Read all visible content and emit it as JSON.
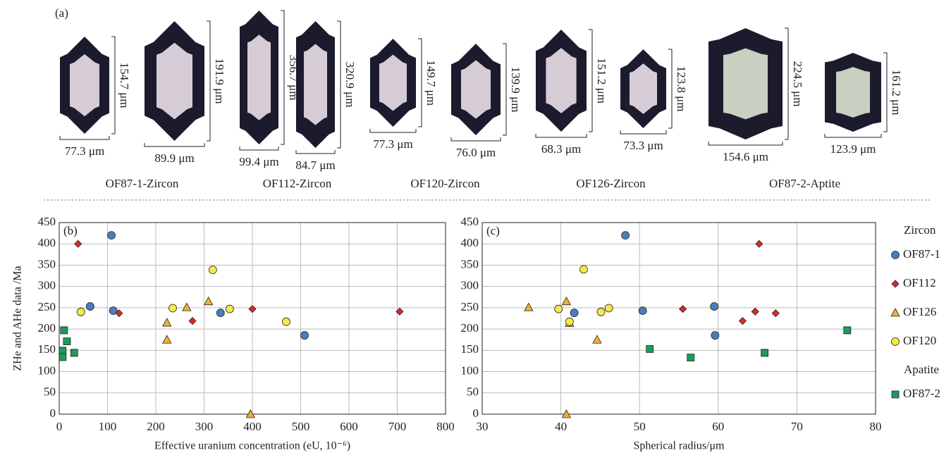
{
  "panel_a": {
    "label": "(a)",
    "samples": [
      {
        "name": "OF87-1-Zircon",
        "grains": [
          {
            "height": "154.7 μm",
            "width": "77.3 μm"
          },
          {
            "height": "191.9 μm",
            "width": "89.9 μm"
          }
        ]
      },
      {
        "name": "OF112-Zircon",
        "grains": [
          {
            "height": "356.7 μm",
            "width": "99.4 μm"
          },
          {
            "height": "320.9 μm",
            "width": "84.7 μm"
          }
        ]
      },
      {
        "name": "OF120-Zircon",
        "grains": [
          {
            "height": "149.7 μm",
            "width": "77.3 μm"
          },
          {
            "height": "139.9 μm",
            "width": "76.0 μm"
          }
        ]
      },
      {
        "name": "OF126-Zircon",
        "grains": [
          {
            "height": "151.2 μm",
            "width": "68.3 μm"
          },
          {
            "height": "123.8 μm",
            "width": "73.3 μm"
          }
        ]
      },
      {
        "name": "OF87-2-Aptite",
        "grains": [
          {
            "height": "224.5 μm",
            "width": "154.6 μm"
          },
          {
            "height": "161.2 μm",
            "width": "123.9 μm"
          }
        ]
      }
    ]
  },
  "chart_data": [
    {
      "type": "scatter",
      "panel_label": "(b)",
      "xlabel": "Effective uranium concentration (eU, 10⁻⁶)",
      "ylabel": "ZHe and AHe data /Ma",
      "xlim": [
        0,
        800
      ],
      "xticks": [
        0,
        100,
        200,
        300,
        400,
        500,
        600,
        700,
        800
      ],
      "ylim": [
        0,
        450
      ],
      "yticks": [
        0,
        50,
        100,
        150,
        200,
        250,
        300,
        350,
        400,
        450
      ],
      "grid": true,
      "series": [
        {
          "color": "#4a7ebb",
          "marker": "circle",
          "x": [
            108,
            64,
            112,
            334,
            508
          ],
          "values": [
            420,
            253,
            243,
            238,
            185
          ]
        },
        {
          "color": "#e0262b",
          "marker": "diamond",
          "x": [
            39,
            124,
            276,
            400,
            705
          ],
          "values": [
            400,
            237,
            219,
            247,
            241
          ]
        },
        {
          "color": "#f0b030",
          "marker": "triangle",
          "x": [
            223,
            223,
            264,
            309,
            396
          ],
          "values": [
            215,
            175,
            251,
            265,
            0
          ]
        },
        {
          "color": "#f5e84a",
          "marker": "circle",
          "x": [
            45,
            235,
            318,
            353,
            470
          ],
          "values": [
            240,
            249,
            339,
            247,
            217
          ]
        },
        {
          "color": "#1f9a5a",
          "marker": "square",
          "x": [
            10,
            16,
            31,
            7,
            7
          ],
          "values": [
            197,
            171,
            144,
            149,
            134
          ]
        }
      ]
    },
    {
      "type": "scatter",
      "panel_label": "(c)",
      "xlabel": "Spherical radius/μm",
      "xlim": [
        30,
        80
      ],
      "xticks": [
        30,
        40,
        50,
        60,
        70,
        80
      ],
      "ylim": [
        0,
        450
      ],
      "yticks": [
        0,
        50,
        100,
        150,
        200,
        250,
        300,
        350,
        400,
        450
      ],
      "grid": true,
      "legend_groups": [
        "Zircon",
        "Apatite"
      ],
      "series": [
        {
          "name": "OF87-1",
          "color": "#4a7ebb",
          "marker": "circle",
          "x": [
            48.2,
            50.4,
            59.5,
            59.6,
            41.7
          ],
          "values": [
            420,
            243,
            253,
            185,
            238
          ]
        },
        {
          "name": "OF112",
          "color": "#e0262b",
          "marker": "diamond",
          "x": [
            65.2,
            55.5,
            63.1,
            64.7,
            67.3
          ],
          "values": [
            400,
            247,
            219,
            241,
            237
          ]
        },
        {
          "name": "OF126",
          "color": "#f0b030",
          "marker": "triangle",
          "x": [
            35.9,
            40.7,
            41.1,
            44.6,
            40.7
          ],
          "values": [
            251,
            265,
            214,
            175,
            0
          ]
        },
        {
          "name": "OF120",
          "color": "#f5e84a",
          "marker": "circle",
          "x": [
            39.7,
            42.9,
            41.1,
            45.1,
            46.1
          ],
          "values": [
            247,
            340,
            217,
            240,
            249
          ]
        },
        {
          "name": "OF87-2",
          "color": "#1f9a5a",
          "marker": "square",
          "x": [
            51.3,
            56.5,
            65.9,
            76.4
          ],
          "values": [
            153,
            133,
            144,
            197
          ]
        }
      ]
    }
  ]
}
